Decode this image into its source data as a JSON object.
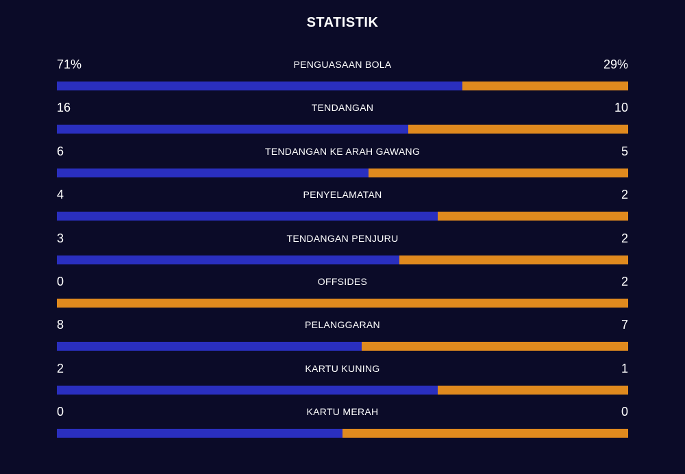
{
  "title": "STATISTIK",
  "colors": {
    "background": "#0b0b28",
    "home": "#2a2fbf",
    "away": "#e08a1e",
    "text": "#ffffff"
  },
  "stats": [
    {
      "label": "PENGUASAAN BOLA",
      "home": "71%",
      "away": "29%",
      "home_share": 0.71
    },
    {
      "label": "TENDANGAN",
      "home": "16",
      "away": "10",
      "home_share": 0.615
    },
    {
      "label": "TENDANGAN KE ARAH GAWANG",
      "home": "6",
      "away": "5",
      "home_share": 0.545
    },
    {
      "label": "PENYELAMATAN",
      "home": "4",
      "away": "2",
      "home_share": 0.667
    },
    {
      "label": "TENDANGAN PENJURU",
      "home": "3",
      "away": "2",
      "home_share": 0.6
    },
    {
      "label": "OFFSIDES",
      "home": "0",
      "away": "2",
      "home_share": 0.0
    },
    {
      "label": "PELANGGARAN",
      "home": "8",
      "away": "7",
      "home_share": 0.533
    },
    {
      "label": "KARTU KUNING",
      "home": "2",
      "away": "1",
      "home_share": 0.667
    },
    {
      "label": "KARTU MERAH",
      "home": "0",
      "away": "0",
      "home_share": 0.5
    }
  ]
}
